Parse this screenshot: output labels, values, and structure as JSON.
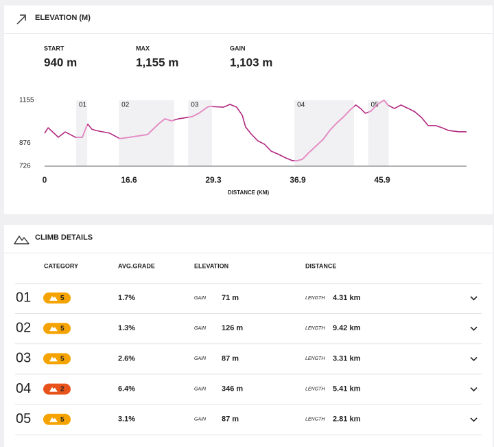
{
  "header": {
    "title": "ELEVATION (M)"
  },
  "stats": [
    {
      "label": "START",
      "value": "940 m"
    },
    {
      "label": "MAX",
      "value": "1,155 m"
    },
    {
      "label": "GAIN",
      "value": "1,103 m"
    }
  ],
  "chart_data": {
    "type": "line",
    "xlabel": "DISTANCE (KM)",
    "color": "#b0267f",
    "climb_color": "#e58cc4",
    "x": [
      0,
      0.7,
      2.0,
      2.7,
      4.05,
      6.07,
      7.42,
      8.2,
      8.5,
      9.3,
      10.1,
      12.8,
      14.8,
      17.3,
      19.4,
      21.1,
      22.0,
      23.0,
      24.0,
      26.1,
      27.1,
      28.1,
      28.6,
      30.2,
      30.8,
      31.4,
      31.9,
      32.2,
      32.7,
      33.3,
      33.9,
      34.5,
      35.2,
      35.8,
      36.4,
      36.9,
      37.4,
      38.1,
      38.9,
      39.6,
      40.3,
      41.0,
      41.8,
      42.5,
      43.1,
      43.6,
      44.1,
      44.7,
      45.4,
      46.1,
      46.5,
      47.2,
      47.9,
      48.7,
      49.4,
      50.1,
      50.8,
      51.6,
      52.3,
      53.0,
      54.1,
      54.9
    ],
    "values": [
      940,
      976,
      936,
      914,
      949,
      914,
      914,
      981,
      999,
      967,
      958,
      941,
      905,
      918,
      932,
      1003,
      1034,
      1021,
      1034,
      1048,
      1070,
      1101,
      1115,
      1110,
      1128,
      1110,
      1057,
      981,
      936,
      891,
      869,
      824,
      802,
      780,
      762,
      762,
      771,
      815,
      860,
      900,
      958,
      1003,
      1048,
      1093,
      1124,
      1101,
      1070,
      1084,
      1128,
      1155,
      1124,
      1101,
      1124,
      1101,
      1079,
      1043,
      990,
      990,
      976,
      958,
      950,
      950
    ],
    "climbs": [
      {
        "label": "01",
        "start": 6.2,
        "end": 8.4
      },
      {
        "label": "02",
        "start": 14.6,
        "end": 23.4
      },
      {
        "label": "03",
        "start": 25.5,
        "end": 29.1
      },
      {
        "label": "04",
        "start": 36.6,
        "end": 42.9
      },
      {
        "label": "05",
        "start": 44.4,
        "end": 46.6
      }
    ],
    "xlim": [
      0,
      54.9
    ],
    "xticks": [
      0,
      16.6,
      29.3,
      36.9,
      45.9
    ],
    "ylim": [
      726,
      1155
    ],
    "yticks": [
      726,
      876,
      1155
    ]
  },
  "climb_details": {
    "title": "CLIMB DETAILS",
    "columns": [
      "CATEGORY",
      "AVG.GRADE",
      "ELEVATION",
      "DISTANCE"
    ],
    "rows": [
      {
        "id": "01",
        "category": "5",
        "badge_color": "#f5a300",
        "grade": "1.7%",
        "gain_label": "GAIN",
        "gain": "71 m",
        "length_label": "LENGTH",
        "length": "4.31 km"
      },
      {
        "id": "02",
        "category": "5",
        "badge_color": "#f5a300",
        "grade": "1.3%",
        "gain_label": "GAIN",
        "gain": "126 m",
        "length_label": "LENGTH",
        "length": "9.42 km"
      },
      {
        "id": "03",
        "category": "5",
        "badge_color": "#f5a300",
        "grade": "2.6%",
        "gain_label": "GAIN",
        "gain": "87 m",
        "length_label": "LENGTH",
        "length": "3.31 km"
      },
      {
        "id": "04",
        "category": "2",
        "badge_color": "#e8531c",
        "grade": "6.4%",
        "gain_label": "GAIN",
        "gain": "346 m",
        "length_label": "LENGTH",
        "length": "5.41 km"
      },
      {
        "id": "05",
        "category": "5",
        "badge_color": "#f5a300",
        "grade": "3.1%",
        "gain_label": "GAIN",
        "gain": "87 m",
        "length_label": "LENGTH",
        "length": "2.81 km"
      }
    ]
  }
}
